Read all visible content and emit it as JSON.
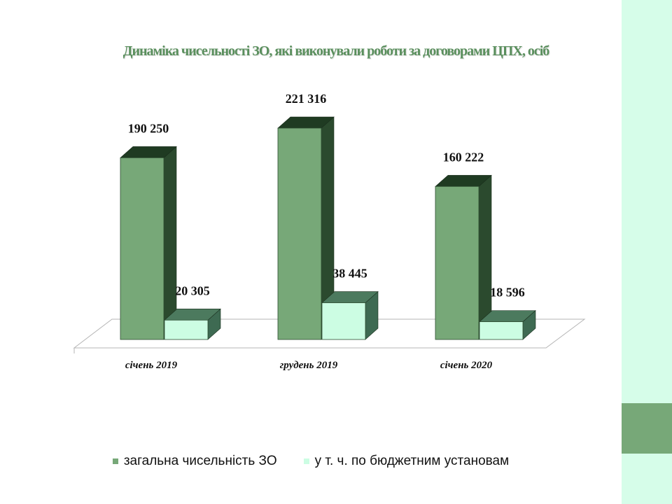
{
  "chart_data": {
    "type": "bar",
    "title": "Динаміка чисельності ЗО, які виконували роботи за договорами ЦПХ, осіб",
    "categories": [
      "січень 2019",
      "грудень 2019",
      "січень 2020"
    ],
    "series": [
      {
        "name": "загальна чисельність ЗО",
        "values": [
          190250,
          221316,
          160222
        ],
        "labels": [
          "190 250",
          "221 316",
          "160 222"
        ],
        "color": "#77a878"
      },
      {
        "name": "у т. ч. по  бюджетним установам",
        "values": [
          20305,
          38445,
          18596
        ],
        "labels": [
          "20 305",
          "38 445",
          "18 596"
        ],
        "color": "#ccfde3"
      }
    ],
    "legend_position": "bottom",
    "grid": false,
    "style": "3d-column"
  }
}
